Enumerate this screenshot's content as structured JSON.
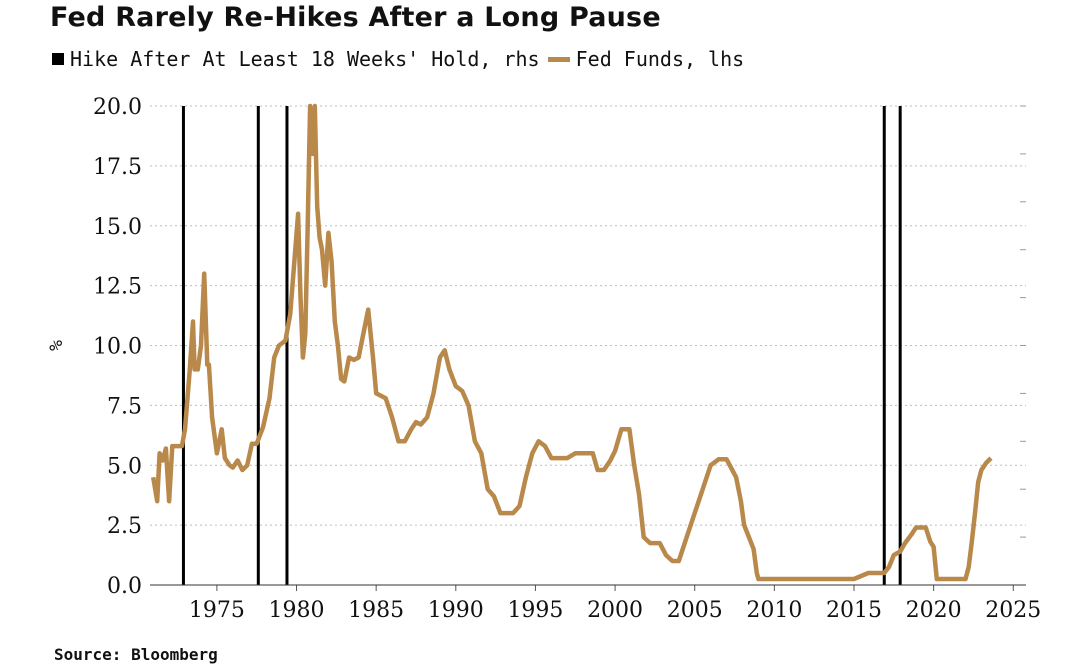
{
  "title": "Fed Rarely Re-Hikes After a Long Pause",
  "legend": {
    "hike_label": "Hike After At Least 18 Weeks' Hold, rhs",
    "fed_label": "Fed Funds, lhs"
  },
  "colors": {
    "fed": "#B8894A",
    "hike": "#000000",
    "grid": "#BDBDBD"
  },
  "source": "Source: Bloomberg",
  "chart_data": {
    "type": "line",
    "title": "Fed Rarely Re-Hikes After a Long Pause",
    "ylabel": "%",
    "xlim": [
      1970.8,
      2025.8
    ],
    "ylim": [
      0,
      20
    ],
    "xticks": [
      1975,
      1980,
      1985,
      1990,
      1995,
      2000,
      2005,
      2010,
      2015,
      2020,
      2025
    ],
    "yticks": [
      "0.0",
      "2.5",
      "5.0",
      "7.5",
      "10.0",
      "12.5",
      "15.0",
      "17.5",
      "20.0"
    ],
    "grid": true,
    "legend_position": "top-left",
    "series": [
      {
        "name": "Fed Funds, lhs",
        "axis": "left",
        "x": [
          1971.0,
          1971.25,
          1971.4,
          1971.6,
          1971.8,
          1972.0,
          1972.2,
          1972.4,
          1972.6,
          1972.8,
          1973.0,
          1973.3,
          1973.5,
          1973.6,
          1973.8,
          1974.0,
          1974.2,
          1974.4,
          1974.5,
          1974.7,
          1975.0,
          1975.3,
          1975.5,
          1975.8,
          1976.0,
          1976.3,
          1976.6,
          1976.9,
          1977.2,
          1977.5,
          1977.9,
          1978.3,
          1978.6,
          1978.9,
          1979.3,
          1979.6,
          1979.9,
          1980.1,
          1980.25,
          1980.4,
          1980.55,
          1980.7,
          1980.85,
          1981.0,
          1981.15,
          1981.3,
          1981.45,
          1981.6,
          1981.8,
          1982.0,
          1982.2,
          1982.4,
          1982.6,
          1982.8,
          1983.0,
          1983.3,
          1983.6,
          1983.9,
          1984.2,
          1984.5,
          1984.8,
          1985.0,
          1985.3,
          1985.6,
          1986.0,
          1986.4,
          1986.8,
          1987.2,
          1987.5,
          1987.8,
          1988.2,
          1988.6,
          1989.0,
          1989.3,
          1989.6,
          1990.0,
          1990.4,
          1990.8,
          1991.2,
          1991.6,
          1992.0,
          1992.4,
          1992.8,
          1993.2,
          1993.6,
          1994.0,
          1994.4,
          1994.8,
          1995.2,
          1995.6,
          1996.0,
          1996.5,
          1997.0,
          1997.5,
          1998.0,
          1998.6,
          1998.9,
          1999.3,
          1999.7,
          2000.0,
          2000.4,
          2000.9,
          2001.2,
          2001.5,
          2001.8,
          2002.2,
          2002.8,
          2003.2,
          2003.6,
          2004.0,
          2004.5,
          2005.0,
          2005.5,
          2006.0,
          2006.5,
          2007.0,
          2007.6,
          2007.9,
          2008.1,
          2008.4,
          2008.7,
          2008.9,
          2009.0,
          2010.0,
          2011.0,
          2012.0,
          2013.0,
          2014.0,
          2015.0,
          2015.9,
          2016.9,
          2017.2,
          2017.5,
          2017.9,
          2018.2,
          2018.6,
          2018.9,
          2019.2,
          2019.5,
          2019.8,
          2020.0,
          2020.2,
          2021.0,
          2022.0,
          2022.2,
          2022.4,
          2022.6,
          2022.8,
          2023.0,
          2023.3,
          2023.6
        ],
        "y": [
          4.5,
          3.5,
          5.5,
          5.2,
          5.7,
          3.5,
          5.8,
          5.8,
          5.8,
          5.8,
          6.5,
          9.0,
          11.0,
          9.0,
          9.0,
          10.0,
          13.0,
          9.2,
          9.2,
          7.0,
          5.5,
          6.5,
          5.3,
          5.0,
          4.9,
          5.2,
          4.8,
          5.0,
          5.9,
          5.9,
          6.6,
          7.8,
          9.5,
          10.0,
          10.2,
          11.3,
          13.8,
          15.5,
          12.0,
          9.5,
          10.5,
          15.0,
          20.0,
          18.0,
          20.0,
          15.8,
          14.5,
          14.0,
          12.5,
          14.7,
          13.5,
          11.0,
          10.0,
          8.6,
          8.5,
          9.5,
          9.4,
          9.5,
          10.5,
          11.5,
          9.5,
          8.0,
          7.9,
          7.8,
          7.0,
          6.0,
          6.0,
          6.5,
          6.8,
          6.7,
          7.0,
          8.0,
          9.5,
          9.8,
          9.0,
          8.3,
          8.1,
          7.5,
          6.0,
          5.5,
          4.0,
          3.7,
          3.0,
          3.0,
          3.0,
          3.3,
          4.5,
          5.5,
          6.0,
          5.8,
          5.3,
          5.3,
          5.3,
          5.5,
          5.5,
          5.5,
          4.8,
          4.8,
          5.2,
          5.6,
          6.5,
          6.5,
          5.0,
          3.8,
          2.0,
          1.75,
          1.75,
          1.25,
          1.0,
          1.0,
          2.0,
          3.0,
          4.0,
          5.0,
          5.25,
          5.25,
          4.5,
          3.5,
          2.5,
          2.0,
          1.5,
          0.5,
          0.25,
          0.25,
          0.25,
          0.25,
          0.25,
          0.25,
          0.25,
          0.5,
          0.5,
          0.75,
          1.25,
          1.4,
          1.75,
          2.1,
          2.4,
          2.4,
          2.4,
          1.8,
          1.6,
          0.25,
          0.25,
          0.25,
          0.75,
          1.8,
          3.0,
          4.3,
          4.8,
          5.1,
          5.3
        ]
      }
    ],
    "hike_events": [
      1972.9,
      1977.6,
      1979.4,
      2016.9,
      2017.9
    ]
  }
}
